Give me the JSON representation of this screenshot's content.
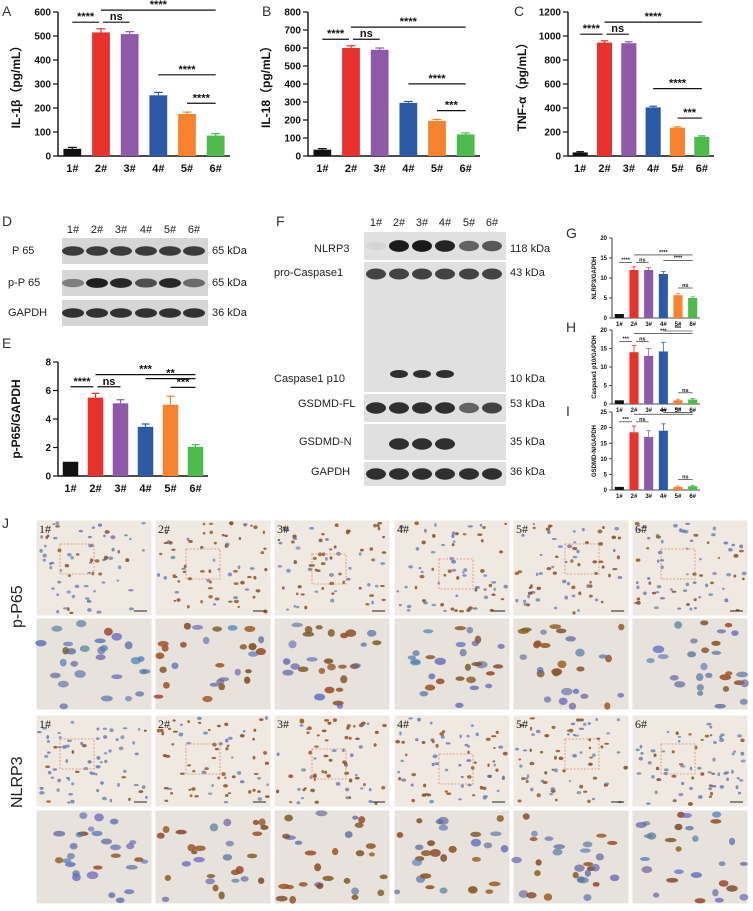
{
  "colors": [
    "#111111",
    "#e8322b",
    "#8e5aa8",
    "#2d5aa6",
    "#f7832e",
    "#4cbb4c"
  ],
  "panel_letters": {
    "A": "A",
    "B": "B",
    "C": "C",
    "D": "D",
    "E": "E",
    "F": "F",
    "G": "G",
    "H": "H",
    "I": "I",
    "J": "J"
  },
  "western_d": {
    "lanes": [
      "1#",
      "2#",
      "3#",
      "4#",
      "5#",
      "6#"
    ],
    "rows": [
      {
        "label": "P 65",
        "kda": "65 kDa"
      },
      {
        "label": "p-P 65",
        "kda": "65 kDa"
      },
      {
        "label": "GAPDH",
        "kda": "36 kDa"
      }
    ]
  },
  "western_f": {
    "lanes": [
      "1#",
      "2#",
      "3#",
      "4#",
      "5#",
      "6#"
    ],
    "labels": [
      "NLRP3",
      "pro-Caspase1",
      "Caspase1 p10",
      "GSDMD-FL",
      "GSDMD-N",
      "GAPDH"
    ],
    "kda": [
      "118 kDa",
      "43 kDa",
      "10 kDa",
      "53 kDa",
      "35 kDa",
      "36 kDa"
    ]
  },
  "ihc": {
    "rows": [
      "p-P65",
      "NLRP3"
    ],
    "samples": [
      "1#",
      "2#",
      "3#",
      "4#",
      "5#",
      "6#"
    ]
  },
  "chart_data": [
    {
      "id": "A",
      "type": "bar",
      "categories": [
        "1#",
        "2#",
        "3#",
        "4#",
        "5#",
        "6#"
      ],
      "values": [
        30,
        515,
        508,
        253,
        175,
        85
      ],
      "errors": [
        6,
        15,
        10,
        12,
        8,
        8
      ],
      "ylabel": "IL-1β（pg/mL）",
      "ylim": [
        0,
        600
      ],
      "yticks": [
        0,
        100,
        200,
        300,
        400,
        500,
        600
      ],
      "sig": [
        {
          "from": 0,
          "to": 1,
          "label": "****"
        },
        {
          "from": 1,
          "to": 2,
          "label": "ns"
        },
        {
          "from": 1,
          "to": 5,
          "label": "****"
        },
        {
          "from": 3,
          "to": 5,
          "label": "****"
        },
        {
          "from": 4,
          "to": 5,
          "label": "****"
        }
      ]
    },
    {
      "id": "B",
      "type": "bar",
      "categories": [
        "1#",
        "2#",
        "3#",
        "4#",
        "5#",
        "6#"
      ],
      "values": [
        35,
        600,
        590,
        295,
        195,
        120
      ],
      "errors": [
        6,
        12,
        10,
        8,
        8,
        8
      ],
      "ylabel": "IL-18（pg/mL）",
      "ylim": [
        0,
        800
      ],
      "yticks": [
        0,
        100,
        200,
        300,
        400,
        500,
        600,
        700,
        800
      ],
      "sig": [
        {
          "from": 0,
          "to": 1,
          "label": "****"
        },
        {
          "from": 1,
          "to": 2,
          "label": "ns"
        },
        {
          "from": 1,
          "to": 5,
          "label": "****"
        },
        {
          "from": 3,
          "to": 5,
          "label": "****"
        },
        {
          "from": 4,
          "to": 5,
          "label": "***"
        }
      ]
    },
    {
      "id": "C",
      "type": "bar",
      "categories": [
        "1#",
        "2#",
        "3#",
        "4#",
        "5#",
        "6#"
      ],
      "values": [
        30,
        945,
        940,
        405,
        235,
        160
      ],
      "errors": [
        6,
        15,
        12,
        10,
        8,
        8
      ],
      "ylabel": "TNF-α（pg/mL）",
      "ylim": [
        0,
        1200
      ],
      "yticks": [
        0,
        200,
        400,
        600,
        800,
        1000,
        1200
      ],
      "sig": [
        {
          "from": 0,
          "to": 1,
          "label": "****"
        },
        {
          "from": 1,
          "to": 2,
          "label": "ns"
        },
        {
          "from": 1,
          "to": 5,
          "label": "****"
        },
        {
          "from": 3,
          "to": 5,
          "label": "****"
        },
        {
          "from": 4,
          "to": 5,
          "label": "***"
        }
      ]
    },
    {
      "id": "E",
      "type": "bar",
      "categories": [
        "1#",
        "2#",
        "3#",
        "4#",
        "5#",
        "6#"
      ],
      "values": [
        1.0,
        5.5,
        5.1,
        3.45,
        5.0,
        2.05
      ],
      "errors": [
        0,
        0.3,
        0.25,
        0.2,
        0.6,
        0.15
      ],
      "ylabel": "p-P65/GAPDH",
      "ylim": [
        0,
        8
      ],
      "yticks": [
        0,
        2,
        4,
        6,
        8
      ],
      "sig": [
        {
          "from": 0,
          "to": 1,
          "label": "****"
        },
        {
          "from": 1,
          "to": 2,
          "label": "ns"
        },
        {
          "from": 1,
          "to": 5,
          "label": "***"
        },
        {
          "from": 3,
          "to": 5,
          "label": "**"
        },
        {
          "from": 4,
          "to": 5,
          "label": "***"
        }
      ]
    },
    {
      "id": "G",
      "type": "bar",
      "categories": [
        "1#",
        "2#",
        "3#",
        "4#",
        "5#",
        "6#"
      ],
      "values": [
        1,
        12,
        12,
        11,
        5.7,
        5.0
      ],
      "errors": [
        0,
        0.8,
        0.6,
        0.6,
        0.4,
        0.3
      ],
      "ylabel": "NLRP3/GAPDH",
      "ylim": [
        0,
        20
      ],
      "yticks": [
        0,
        5,
        10,
        15,
        20
      ],
      "sig": [
        {
          "from": 0,
          "to": 1,
          "label": "****"
        },
        {
          "from": 1,
          "to": 2,
          "label": "ns"
        },
        {
          "from": 1,
          "to": 5,
          "label": "****"
        },
        {
          "from": 3,
          "to": 5,
          "label": "****"
        },
        {
          "from": 4,
          "to": 5,
          "label": "ns"
        }
      ]
    },
    {
      "id": "H",
      "type": "bar",
      "categories": [
        "1#",
        "2#",
        "3#",
        "4#",
        "5#",
        "6#"
      ],
      "values": [
        1,
        14,
        13,
        14.2,
        1.0,
        1.2
      ],
      "errors": [
        0,
        1.8,
        2.0,
        2.5,
        0.3,
        0.3
      ],
      "ylabel": "Caspase1 p10/GAPDH",
      "ylim": [
        0,
        20
      ],
      "yticks": [
        0,
        5,
        10,
        15,
        20
      ],
      "sig": [
        {
          "from": 0,
          "to": 1,
          "label": "***"
        },
        {
          "from": 1,
          "to": 2,
          "label": "ns"
        },
        {
          "from": 1,
          "to": 5,
          "label": "***"
        },
        {
          "from": 3,
          "to": 5,
          "label": "***"
        },
        {
          "from": 4,
          "to": 5,
          "label": "ns"
        }
      ]
    },
    {
      "id": "I",
      "type": "bar",
      "categories": [
        "1#",
        "2#",
        "3#",
        "4#",
        "5#",
        "6#"
      ],
      "values": [
        1,
        18.5,
        17,
        19,
        1.0,
        1.2
      ],
      "errors": [
        0,
        2,
        2,
        2.2,
        0.3,
        0.3
      ],
      "ylabel": "GSDMD-N/GAPDH",
      "ylim": [
        0,
        25
      ],
      "yticks": [
        0,
        5,
        10,
        15,
        20,
        25
      ],
      "sig": [
        {
          "from": 0,
          "to": 1,
          "label": "***"
        },
        {
          "from": 1,
          "to": 2,
          "label": "ns"
        },
        {
          "from": 1,
          "to": 5,
          "label": "***"
        },
        {
          "from": 3,
          "to": 5,
          "label": "***"
        },
        {
          "from": 4,
          "to": 5,
          "label": "ns"
        }
      ]
    }
  ]
}
